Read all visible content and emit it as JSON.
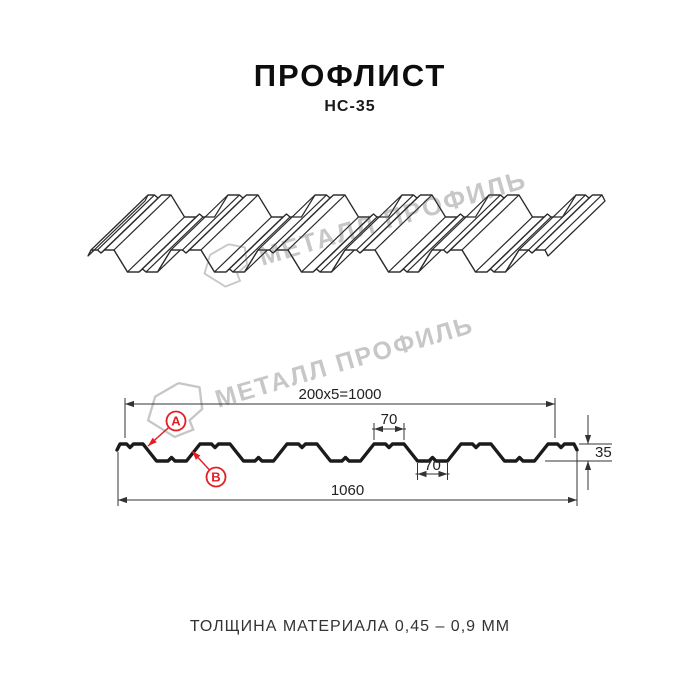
{
  "header": {
    "title": "ПРОФЛИСТ",
    "subtitle": "НС-35"
  },
  "watermark": {
    "text": "МЕТАЛЛ ПРОФИЛЬ",
    "color": "#c7c7c7"
  },
  "section": {
    "dims": {
      "pitch": "200x5=1000",
      "crest_width": "70",
      "valley_width": "70",
      "overall_width": "1060",
      "height": "35"
    },
    "detail_labels": [
      {
        "text": "A"
      },
      {
        "text": "B"
      }
    ],
    "accent_red": "#e31e24",
    "line_color": "#1b1b1b",
    "dim_color": "#333333"
  },
  "footer": {
    "thickness_note": "ТОЛЩИНА МАТЕРИАЛА 0,45 – 0,9 ММ"
  }
}
